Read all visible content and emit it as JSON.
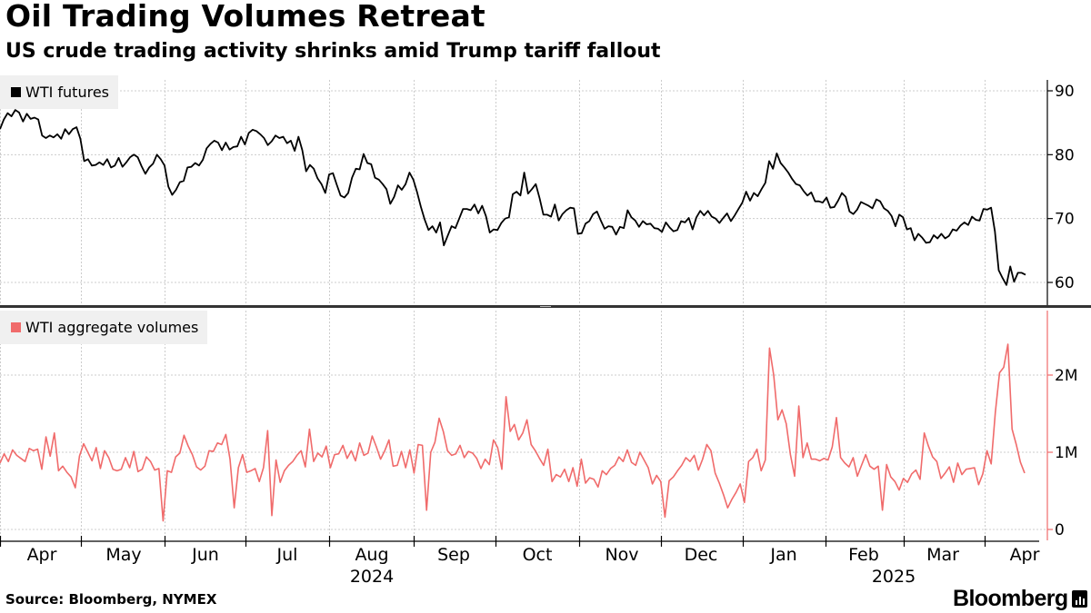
{
  "title": "Oil Trading Volumes Retreat",
  "subtitle": "US crude trading activity shrinks amid Trump tariff fallout",
  "source": "Source: Bloomberg, NYMEX",
  "brand": "Bloomberg",
  "colors": {
    "price_line": "#000000",
    "volume_line": "#f06b6b",
    "grid": "#cccccc",
    "divider": "#333333"
  },
  "chart_data": [
    {
      "type": "line",
      "series": [
        {
          "name": "WTI futures",
          "color": "#000000",
          "values": [
            84,
            85.5,
            86.5,
            86,
            87,
            86.6,
            85.2,
            86.4,
            85.6,
            85.8,
            85.5,
            83,
            82.6,
            83,
            82.7,
            83.2,
            82.5,
            84,
            83.2,
            84,
            84.3,
            82.5,
            79,
            79.3,
            78.3,
            78.4,
            78.8,
            78.4,
            79.3,
            78,
            78.3,
            79.5,
            78.1,
            78.8,
            79.6,
            80,
            79.6,
            78.2,
            77,
            78,
            78.6,
            80,
            79.3,
            78.3,
            75,
            73.7,
            74.5,
            75.7,
            75.9,
            78,
            78.1,
            78.7,
            78.3,
            79.2,
            81,
            81.7,
            82.2,
            81.9,
            80.7,
            81.9,
            80.8,
            81.2,
            81.3,
            82.8,
            81.6,
            83.4,
            83.9,
            83.7,
            83.2,
            82.6,
            81.5,
            82.1,
            83,
            82.6,
            82.8,
            81.8,
            82.2,
            80.6,
            82.8,
            80.7,
            77.4,
            78.4,
            77.8,
            76.3,
            75.4,
            74,
            76.9,
            77.1,
            75.3,
            73.6,
            73.3,
            74,
            76.4,
            77.8,
            77.7,
            80.1,
            78.7,
            78.5,
            76.4,
            76.1,
            75.4,
            74.6,
            72.3,
            73.4,
            75.2,
            74.5,
            75.4,
            77.2,
            76.1,
            74.1,
            71.8,
            69.8,
            68.2,
            68.8,
            67.8,
            69.4,
            65.8,
            67.3,
            68.8,
            68.5,
            70,
            71.5,
            71.5,
            71.3,
            72.2,
            70.8,
            72,
            70.4,
            67.8,
            68.3,
            68.2,
            69.3,
            70,
            70.2,
            73.8,
            74.2,
            73.6,
            77.2,
            73.9,
            74.6,
            75.4,
            73.2,
            70.6,
            70.6,
            70.3,
            72.2,
            69.7,
            70.7,
            71.3,
            71.7,
            71.6,
            67.6,
            67.7,
            69.2,
            69.6,
            70.7,
            71.1,
            69.7,
            68.4,
            68.8,
            68.7,
            67.5,
            68.7,
            68.5,
            71.3,
            70.2,
            69.7,
            68.7,
            69.6,
            69.1,
            69.2,
            68.5,
            68.4,
            67.9,
            69.4,
            68.6,
            68,
            68.2,
            69.6,
            69.4,
            70.1,
            68.3,
            70.2,
            71.2,
            70.5,
            71.2,
            70.3,
            70,
            69.3,
            70.1,
            70.8,
            69.6,
            70.5,
            71.5,
            72.5,
            74.2,
            72.8,
            74,
            73.5,
            74.6,
            75.6,
            79,
            77.8,
            80.2,
            78.7,
            78,
            77.2,
            76.2,
            75.4,
            75.2,
            74.3,
            73.6,
            74.1,
            72.7,
            72.7,
            72.5,
            73.3,
            71.7,
            71.8,
            72.8,
            74,
            73.4,
            71.1,
            70.7,
            71.4,
            72.6,
            72.3,
            72,
            71.6,
            73,
            72.7,
            71.6,
            71.2,
            70.4,
            68.8,
            70.6,
            70.2,
            68.3,
            68.5,
            66.6,
            67.6,
            67,
            66.2,
            66.3,
            67.4,
            66.9,
            67.6,
            66.9,
            67.3,
            68.3,
            68.1,
            68.9,
            69.4,
            69,
            70.3,
            69.8,
            69.7,
            71.5,
            71.4,
            71.7,
            68,
            61.9,
            60.7,
            59.6,
            62.5,
            60.1,
            61.5,
            61.5,
            61.2
          ]
        }
      ],
      "x_tick_labels": [
        "Apr",
        "May",
        "Jun",
        "Jul",
        "Aug",
        "Sep",
        "Oct",
        "Nov",
        "Dec",
        "Jan",
        "Feb",
        "Mar",
        "Apr"
      ],
      "year_labels": [
        "2024",
        "2025"
      ],
      "y_ticks": [
        60,
        70,
        80,
        90
      ],
      "ylim": [
        58,
        92
      ],
      "legend": "top-left",
      "grid": true
    },
    {
      "type": "line",
      "series": [
        {
          "name": "WTI aggregate volumes",
          "color": "#f06b6b",
          "values": [
            860000,
            980000,
            880000,
            1030000,
            960000,
            920000,
            880000,
            1050000,
            1020000,
            1040000,
            780000,
            1200000,
            950000,
            1250000,
            760000,
            820000,
            740000,
            680000,
            540000,
            950000,
            1110000,
            1000000,
            890000,
            1060000,
            790000,
            1020000,
            930000,
            780000,
            760000,
            780000,
            930000,
            800000,
            1010000,
            750000,
            780000,
            940000,
            880000,
            770000,
            790000,
            110000,
            760000,
            740000,
            940000,
            990000,
            1220000,
            1080000,
            970000,
            810000,
            770000,
            820000,
            1020000,
            1010000,
            1120000,
            1100000,
            1230000,
            910000,
            280000,
            800000,
            970000,
            740000,
            760000,
            790000,
            620000,
            800000,
            1280000,
            180000,
            900000,
            610000,
            760000,
            830000,
            880000,
            960000,
            1020000,
            810000,
            1300000,
            880000,
            990000,
            940000,
            1080000,
            800000,
            970000,
            980000,
            1090000,
            920000,
            1020000,
            890000,
            1120000,
            960000,
            990000,
            1210000,
            1070000,
            910000,
            1020000,
            1160000,
            820000,
            830000,
            1010000,
            800000,
            1030000,
            730000,
            1100000,
            1090000,
            250000,
            1000000,
            1130000,
            1440000,
            1270000,
            1020000,
            960000,
            980000,
            1090000,
            930000,
            1010000,
            990000,
            920000,
            790000,
            910000,
            840000,
            1160000,
            1060000,
            780000,
            1720000,
            1270000,
            1360000,
            1160000,
            1250000,
            1420000,
            1100000,
            1020000,
            920000,
            830000,
            1040000,
            620000,
            710000,
            680000,
            780000,
            620000,
            800000,
            560000,
            910000,
            600000,
            670000,
            650000,
            550000,
            760000,
            710000,
            790000,
            830000,
            940000,
            880000,
            1030000,
            870000,
            830000,
            1000000,
            900000,
            800000,
            590000,
            700000,
            620000,
            160000,
            630000,
            680000,
            760000,
            830000,
            930000,
            880000,
            960000,
            770000,
            910000,
            1100000,
            1020000,
            730000,
            600000,
            450000,
            280000,
            390000,
            480000,
            590000,
            350000,
            880000,
            930000,
            1040000,
            760000,
            900000,
            2350000,
            2000000,
            1420000,
            1550000,
            1370000,
            970000,
            690000,
            1600000,
            930000,
            1120000,
            910000,
            910000,
            890000,
            920000,
            900000,
            1070000,
            1450000,
            930000,
            860000,
            810000,
            930000,
            690000,
            830000,
            970000,
            820000,
            780000,
            820000,
            250000,
            840000,
            680000,
            620000,
            510000,
            660000,
            610000,
            720000,
            770000,
            650000,
            1250000,
            1080000,
            940000,
            880000,
            660000,
            730000,
            810000,
            610000,
            860000,
            710000,
            780000,
            790000,
            800000,
            580000,
            720000,
            1020000,
            850000,
            1520000,
            2030000,
            2100000,
            2400000,
            1300000,
            1100000,
            870000,
            730000
          ]
        }
      ],
      "x_tick_labels": [
        "Apr",
        "May",
        "Jun",
        "Jul",
        "Aug",
        "Sep",
        "Oct",
        "Nov",
        "Dec",
        "Jan",
        "Feb",
        "Mar",
        "Apr"
      ],
      "year_labels": [
        "2024",
        "2025"
      ],
      "y_ticks": [
        0,
        1000000,
        2000000
      ],
      "y_tick_labels": [
        "0",
        "1M",
        "2M"
      ],
      "ylim": [
        -100000,
        2800000
      ],
      "legend": "top-left",
      "grid": true
    }
  ]
}
